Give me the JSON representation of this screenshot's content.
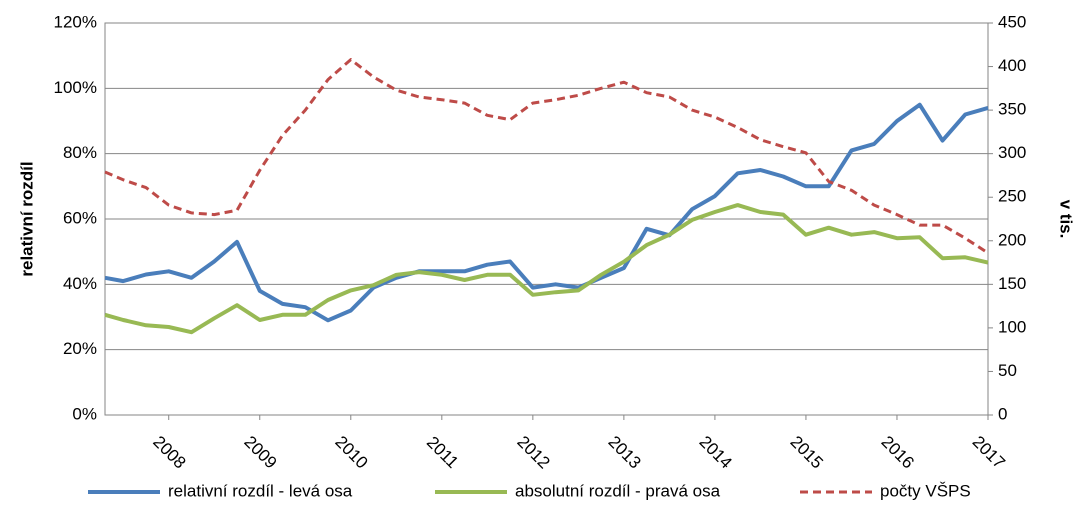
{
  "chart_data": {
    "type": "line",
    "y_label": "relativní rozdíl",
    "y2_label": "v tis.",
    "x": [
      2007.3,
      2007.5,
      2007.75,
      2008.0,
      2008.25,
      2008.5,
      2008.75,
      2009.0,
      2009.25,
      2009.5,
      2009.75,
      2010.0,
      2010.25,
      2010.5,
      2010.75,
      2011.0,
      2011.25,
      2011.5,
      2011.75,
      2012.0,
      2012.25,
      2012.5,
      2012.75,
      2013.0,
      2013.25,
      2013.5,
      2013.75,
      2014.0,
      2014.25,
      2014.5,
      2014.75,
      2015.0,
      2015.25,
      2015.5,
      2015.75,
      2016.0,
      2016.25,
      2016.5,
      2016.75,
      2017.0
    ],
    "series": [
      {
        "name": "relativní rozdíl - levá osa",
        "color": "#4a7ebb",
        "values": [
          42,
          41,
          43,
          44,
          42,
          47,
          53,
          38,
          34,
          33,
          29,
          32,
          39,
          42,
          44,
          44,
          44,
          46,
          47,
          39,
          40,
          39,
          42,
          45,
          57,
          55,
          63,
          67,
          74,
          75,
          73,
          70,
          70,
          81,
          83,
          90,
          95,
          84,
          92,
          94
        ]
      },
      {
        "name": "absolutní rozdíl - pravá osa",
        "color": "#98b954",
        "axis": "y2",
        "values": [
          115,
          109,
          103,
          101,
          95,
          111,
          126,
          109,
          115,
          115,
          132,
          143,
          149,
          161,
          164,
          161,
          155,
          161,
          161,
          138,
          141,
          143,
          161,
          176,
          195,
          207,
          224,
          233,
          241,
          233,
          230,
          207,
          215,
          207,
          210,
          203,
          204,
          180,
          181,
          175
        ]
      },
      {
        "name": "počty VŠPS",
        "color": "#be4b48",
        "axis": "y2",
        "dashed": true,
        "values": [
          279,
          270,
          261,
          241,
          232,
          230,
          235,
          281,
          321,
          350,
          385,
          408,
          388,
          373,
          365,
          362,
          358,
          344,
          339,
          358,
          362,
          367,
          375,
          382,
          370,
          365,
          350,
          342,
          330,
          316,
          308,
          301,
          268,
          258,
          241,
          230,
          218,
          218,
          203,
          186
        ]
      }
    ],
    "xlim": [
      2007.3,
      2017.0
    ],
    "xticks": [
      2008,
      2009,
      2010,
      2011,
      2012,
      2013,
      2014,
      2015,
      2016,
      2017
    ],
    "ylim": [
      0,
      120
    ],
    "yticks": [
      {
        "value": 0,
        "label": "0%"
      },
      {
        "value": 20,
        "label": "20%"
      },
      {
        "value": 40,
        "label": "40%"
      },
      {
        "value": 60,
        "label": "60%"
      },
      {
        "value": 80,
        "label": "80%"
      },
      {
        "value": 100,
        "label": "100%"
      },
      {
        "value": 120,
        "label": "120%"
      }
    ],
    "y2lim": [
      0,
      450
    ],
    "y2ticks": [
      0,
      50,
      100,
      150,
      200,
      250,
      300,
      350,
      400,
      450
    ],
    "grid": true,
    "legend": "bottom"
  }
}
